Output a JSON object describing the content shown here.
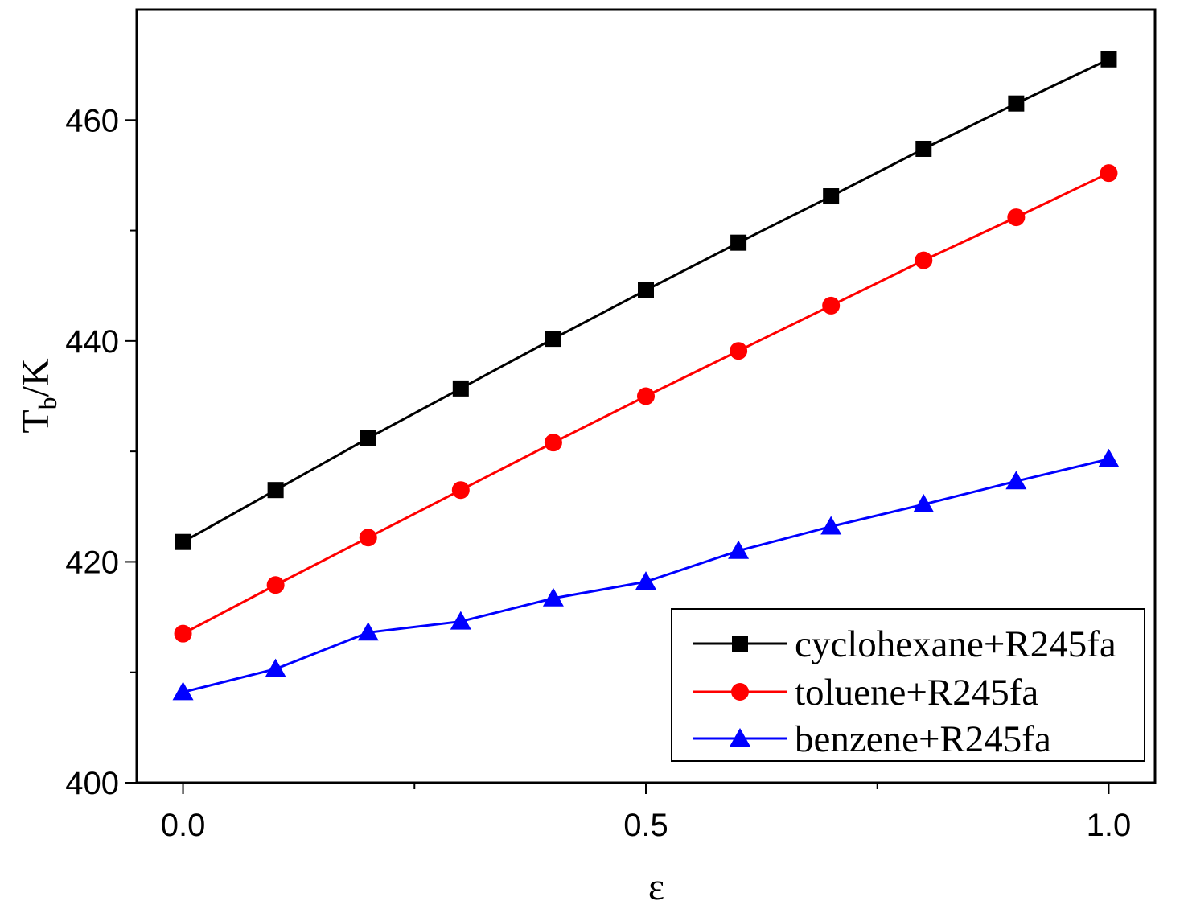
{
  "chart_data": {
    "type": "line",
    "title": "",
    "xlabel": "ε",
    "ylabel": {
      "main": "T",
      "sub": "b",
      "suffix": "/K"
    },
    "xlim": [
      -0.05,
      1.05
    ],
    "ylim": [
      400,
      470
    ],
    "x_ticks": [
      0.0,
      0.5,
      1.0
    ],
    "x_tick_labels": [
      "0.0",
      "0.5",
      "1.0"
    ],
    "x_minor_ticks": [
      0.25,
      0.75
    ],
    "y_ticks": [
      400,
      420,
      440,
      460
    ],
    "y_tick_labels": [
      "400",
      "420",
      "440",
      "460"
    ],
    "y_minor_ticks": [
      410,
      430,
      450
    ],
    "grid": false,
    "legend_position": "bottom-right",
    "x": [
      0.0,
      0.1,
      0.2,
      0.3,
      0.4,
      0.5,
      0.6,
      0.7,
      0.8,
      0.9,
      1.0
    ],
    "series": [
      {
        "name": "cyclohexane+R245fa",
        "color": "#000000",
        "marker": "square",
        "values": [
          421.8,
          426.5,
          431.2,
          435.7,
          440.2,
          444.6,
          448.9,
          453.1,
          457.4,
          461.5,
          465.5
        ]
      },
      {
        "name": "toluene+R245fa",
        "color": "#ff0000",
        "marker": "circle",
        "values": [
          413.5,
          417.9,
          422.2,
          426.5,
          430.8,
          435.0,
          439.1,
          443.2,
          447.3,
          451.2,
          455.2
        ]
      },
      {
        "name": "benzene+R245fa",
        "color": "#0000ff",
        "marker": "triangle",
        "values": [
          408.2,
          410.3,
          413.6,
          414.6,
          416.7,
          418.2,
          421.0,
          423.2,
          425.2,
          427.3,
          429.3
        ]
      }
    ]
  }
}
